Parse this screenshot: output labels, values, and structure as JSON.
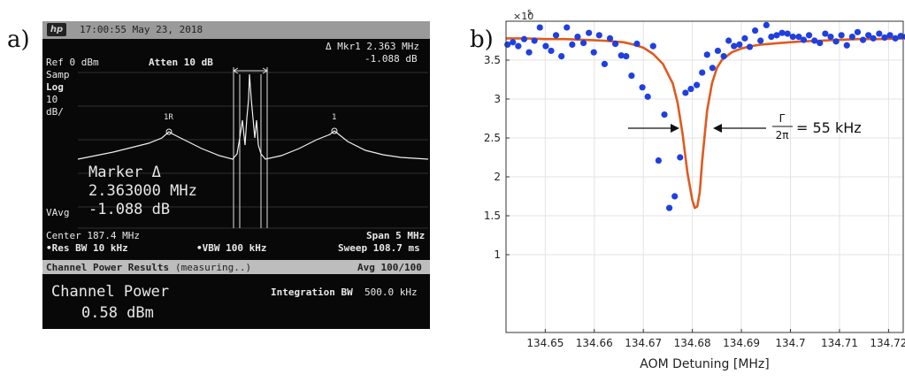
{
  "figure": {
    "label_a": "a)",
    "label_b": "b)"
  },
  "analyzer": {
    "timestamp": "17:00:55  May 23, 2018",
    "logo": "hp",
    "mkr_header": "Δ Mkr1  2.363 MHz",
    "mkr_value_top": "-1.088 dB",
    "ref": "Ref 0 dBm",
    "atten": "Atten 10 dB",
    "samp": "Samp",
    "log": "Log",
    "scale_num": "10",
    "scale_unit": "dB/",
    "marker_1r": "1R",
    "marker_1": "1",
    "marker_box_title": "Marker Δ",
    "marker_box_freq": "2.363000 MHz",
    "marker_box_db": "-1.088 dB",
    "vavg": "VAvg",
    "center": "Center 187.4 MHz",
    "span": "Span 5 MHz",
    "res_bw": "•Res BW 10 kHz",
    "vbw": "•VBW 100 kHz",
    "sweep": "Sweep 108.7 ms",
    "results_title": "Channel Power Results",
    "results_status": "(measuring..)",
    "avg": "Avg 100/100",
    "channel_power_label": "Channel Power",
    "channel_power_value": "0.58 dBm",
    "integration_bw_label": "Integration BW",
    "integration_bw_value": "500.0 kHz"
  },
  "chart_data": {
    "type": "scatter",
    "xlabel": "AOM Detuning [MHz]",
    "ylabel": "",
    "y_exponent_label": "×10",
    "y_exponent": "5",
    "xlim": [
      134.642,
      134.723
    ],
    "ylim": [
      0,
      4.0
    ],
    "xticks": [
      "134.65",
      "134.66",
      "134.67",
      "134.68",
      "134.69",
      "134.7",
      "134.71",
      "134.72"
    ],
    "xtick_values": [
      134.65,
      134.66,
      134.67,
      134.68,
      134.69,
      134.7,
      134.71,
      134.72
    ],
    "yticks": [
      "1",
      "1.5",
      "2",
      "2.5",
      "3",
      "3.5"
    ],
    "ytick_values": [
      1,
      1.5,
      2,
      2.5,
      3,
      3.5
    ],
    "grid": true,
    "annotation": "= 55 kHz",
    "annotation_frac_num": "Γ",
    "annotation_frac_den": "2π",
    "series": [
      {
        "color": "#1f3fe0",
        "marker": "dot",
        "x": [
          134.6423,
          134.6434,
          134.6445,
          134.6457,
          134.6467,
          134.6478,
          134.6489,
          134.6501,
          134.6512,
          134.6522,
          134.6533,
          134.6544,
          134.6555,
          134.6566,
          134.6578,
          134.6589,
          134.6599,
          134.661,
          134.6621,
          134.6632,
          134.6643,
          134.6655,
          134.6665,
          134.6676,
          134.6687,
          134.6698,
          134.6709,
          134.672,
          134.6731,
          134.6743,
          134.6753,
          134.6764,
          134.6775,
          134.6786,
          134.6797,
          134.6809,
          134.682,
          134.683,
          134.6841,
          134.6852,
          134.6864,
          134.6874,
          134.6885,
          134.6896,
          134.6907,
          134.6917,
          134.6928,
          134.6939,
          134.6951,
          134.6961,
          134.6972,
          134.6983,
          134.6994,
          134.7005,
          134.7017,
          134.7027,
          134.7038,
          134.7049,
          134.706,
          134.7071,
          134.7082,
          134.7093,
          134.7104,
          134.7115,
          134.7126,
          134.7137,
          134.7148,
          134.7159,
          134.7169,
          134.7181,
          134.7192,
          134.7203,
          134.7214,
          134.7225,
          134.7236
        ],
        "y": [
          3.7,
          3.73,
          3.68,
          3.77,
          3.6,
          3.75,
          3.92,
          3.68,
          3.62,
          3.82,
          3.55,
          3.92,
          3.7,
          3.8,
          3.72,
          3.85,
          3.6,
          3.82,
          3.45,
          3.78,
          3.71,
          3.56,
          3.55,
          3.3,
          3.71,
          3.15,
          3.03,
          3.68,
          2.21,
          2.8,
          1.6,
          1.75,
          2.25,
          3.08,
          3.13,
          3.18,
          3.34,
          3.57,
          3.4,
          3.62,
          3.55,
          3.75,
          3.68,
          3.7,
          3.78,
          3.67,
          3.88,
          3.75,
          3.95,
          3.8,
          3.82,
          3.85,
          3.84,
          3.8,
          3.8,
          3.76,
          3.82,
          3.75,
          3.72,
          3.84,
          3.8,
          3.74,
          3.82,
          3.69,
          3.8,
          3.86,
          3.76,
          3.82,
          3.78,
          3.84,
          3.79,
          3.82,
          3.78,
          3.81,
          3.8
        ]
      },
      {
        "color": "#e05a1e",
        "type": "line",
        "x": [
          134.642,
          134.646,
          134.65,
          134.654,
          134.658,
          134.662,
          134.666,
          134.668,
          134.67,
          134.672,
          134.674,
          134.676,
          134.677,
          134.678,
          134.679,
          134.68,
          134.6805,
          134.681,
          134.6815,
          134.682,
          134.683,
          134.684,
          134.685,
          134.686,
          134.688,
          134.69,
          134.692,
          134.694,
          134.698,
          134.702,
          134.706,
          134.71,
          134.714,
          134.718,
          134.723
        ],
        "y": [
          3.78,
          3.78,
          3.77,
          3.77,
          3.76,
          3.75,
          3.73,
          3.7,
          3.66,
          3.58,
          3.45,
          3.2,
          2.95,
          2.55,
          2.05,
          1.7,
          1.6,
          1.62,
          1.8,
          2.2,
          2.85,
          3.2,
          3.4,
          3.5,
          3.6,
          3.65,
          3.68,
          3.7,
          3.72,
          3.74,
          3.75,
          3.76,
          3.77,
          3.77,
          3.78
        ]
      }
    ]
  }
}
